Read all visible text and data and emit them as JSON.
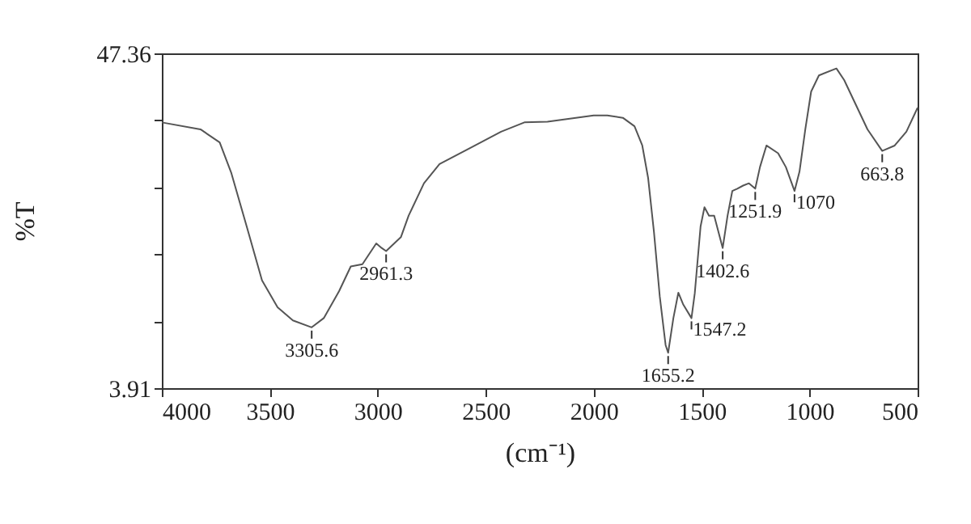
{
  "chart_data": {
    "type": "line",
    "xlabel": "(cm⁻¹)",
    "ylabel": "%T",
    "x": [
      4000,
      3821,
      3732,
      3679,
      3607,
      3536,
      3464,
      3393,
      3306,
      3250,
      3179,
      3125,
      3071,
      3007,
      2982,
      2961.3,
      2893,
      2857,
      2786,
      2714,
      2571,
      2429,
      2321,
      2214,
      2000,
      1937,
      1865,
      1811,
      1775,
      1748,
      1721,
      1694,
      1667,
      1655.2,
      1631,
      1608,
      1586,
      1547.2,
      1532,
      1505,
      1487,
      1466,
      1442,
      1402.6,
      1380,
      1358,
      1335,
      1308,
      1281,
      1251.9,
      1230,
      1200,
      1146,
      1110,
      1070,
      1047,
      1020,
      993,
      957,
      876,
      840,
      786,
      732,
      663.8,
      606,
      552,
      500
    ],
    "series": [
      {
        "color": "#555555",
        "values": [
          38.4,
          37.5,
          35.8,
          31.9,
          24.9,
          17.9,
          14.4,
          12.7,
          11.8,
          13.0,
          16.5,
          19.7,
          20.0,
          22.7,
          22.1,
          21.7,
          23.5,
          26.3,
          30.5,
          33.0,
          35.1,
          37.2,
          38.4,
          38.5,
          39.3,
          39.3,
          39.0,
          37.9,
          35.4,
          31.2,
          24.2,
          15.8,
          9.5,
          8.5,
          13.0,
          16.3,
          14.8,
          13.0,
          16.2,
          24.9,
          27.4,
          26.3,
          26.3,
          22.1,
          26.3,
          29.5,
          29.8,
          30.2,
          30.5,
          29.8,
          32.6,
          35.4,
          34.4,
          32.6,
          29.5,
          32.0,
          37.5,
          42.4,
          44.5,
          45.4,
          43.9,
          40.7,
          37.5,
          34.7,
          35.4,
          37.2,
          40.3
        ]
      }
    ],
    "xlim": [
      4000,
      500
    ],
    "xticks": [
      4000,
      3500,
      3000,
      2500,
      2000,
      1500,
      1000,
      500
    ],
    "ylim": [
      3.91,
      47.36
    ],
    "yticks": [
      3.91,
      {
        "value": 12.6,
        "label": null
      },
      {
        "value": 21.29,
        "label": null
      },
      {
        "value": 29.98,
        "label": null
      },
      {
        "value": 38.67,
        "label": null
      },
      47.36
    ],
    "grid": false,
    "marker": "none",
    "line_style": "solid",
    "annotations": [
      {
        "text": "3305.6",
        "x": 3306,
        "y": 11.8
      },
      {
        "text": "2961.3",
        "x": 2961.3,
        "y": 21.7
      },
      {
        "text": "1655.2",
        "x": 1655.2,
        "y": 8.5
      },
      {
        "text": "1547.2",
        "x": 1547.2,
        "y": 13.0
      },
      {
        "text": "1402.6",
        "x": 1402.6,
        "y": 22.1
      },
      {
        "text": "1251.9",
        "x": 1251.9,
        "y": 29.8
      },
      {
        "text": "1070",
        "x": 1070,
        "y": 29.5
      },
      {
        "text": "663.8",
        "x": 663.8,
        "y": 34.7
      }
    ]
  }
}
